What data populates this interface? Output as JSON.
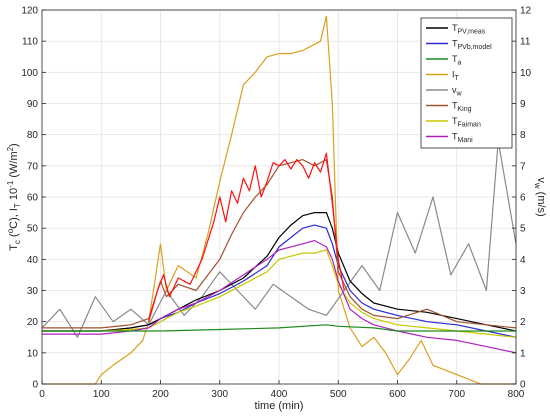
{
  "chart_data": {
    "type": "line",
    "xlabel": "time (min)",
    "ylabel_main": "T",
    "ylabel_sub1": "c",
    "ylabel_mid": " (",
    "ylabel_sup1": "o",
    "ylabel_mid2": "C),  I",
    "ylabel_sub2": "T",
    "ylabel_mid3": " 10",
    "ylabel_sup2": "-1",
    "ylabel_end": " (W/m",
    "ylabel_sup3": "2",
    "ylabel_close": ")",
    "y2label_main": "v",
    "y2label_sub": "w",
    "y2label_end": " (m/s)",
    "xlim": [
      0,
      800
    ],
    "ylim": [
      0,
      120
    ],
    "y2lim": [
      0,
      12
    ],
    "xticks": [
      "0",
      "100",
      "200",
      "300",
      "400",
      "500",
      "600",
      "700",
      "800"
    ],
    "yticks": [
      "0",
      "10",
      "20",
      "30",
      "40",
      "50",
      "60",
      "70",
      "80",
      "90",
      "100",
      "110",
      "120"
    ],
    "y2ticks": [
      "0",
      "1",
      "2",
      "3",
      "4",
      "5",
      "6",
      "7",
      "8",
      "9",
      "10",
      "11",
      "12"
    ],
    "grid": true,
    "legend_position": "top-right",
    "series": [
      {
        "name": "T",
        "sub": "PV,meas",
        "color": "#000000",
        "axis": "left",
        "x": [
          0,
          100,
          150,
          180,
          200,
          230,
          260,
          300,
          340,
          380,
          400,
          420,
          440,
          460,
          480,
          490,
          500,
          520,
          540,
          560,
          600,
          650,
          700,
          750,
          800
        ],
        "y": [
          17,
          17,
          18,
          19,
          21,
          24,
          27,
          30,
          34,
          41,
          47,
          51,
          54,
          55,
          55,
          50,
          42,
          33,
          29,
          26,
          24,
          23,
          21,
          19,
          17
        ]
      },
      {
        "name": "T",
        "sub": "PVb,model",
        "color": "#2a2ad0",
        "axis": "left",
        "x": [
          0,
          100,
          150,
          180,
          200,
          230,
          260,
          300,
          340,
          380,
          400,
          420,
          440,
          460,
          480,
          490,
          500,
          520,
          540,
          560,
          600,
          650,
          700,
          750,
          800
        ],
        "y": [
          17,
          17,
          18,
          19,
          21,
          23,
          26,
          29,
          33,
          38,
          44,
          47,
          50,
          51,
          50,
          45,
          38,
          30,
          26,
          24,
          22,
          20,
          19,
          17,
          15
        ]
      },
      {
        "name": "T",
        "sub": "a",
        "color": "#1e8a1e",
        "axis": "left",
        "x": [
          0,
          100,
          200,
          300,
          400,
          480,
          500,
          560,
          600,
          700,
          800
        ],
        "y": [
          17,
          17,
          17,
          17.5,
          18,
          19,
          18.5,
          18,
          17,
          17,
          17
        ]
      },
      {
        "name": "I",
        "sub": "T",
        "color": "#d9a020",
        "axis": "left",
        "x": [
          0,
          90,
          100,
          120,
          150,
          170,
          180,
          200,
          210,
          230,
          260,
          280,
          300,
          320,
          340,
          360,
          380,
          400,
          420,
          440,
          460,
          470,
          480,
          490,
          500,
          520,
          540,
          560,
          580,
          600,
          620,
          640,
          660,
          700,
          740,
          760,
          800
        ],
        "y": [
          0,
          0,
          3,
          6,
          10,
          14,
          20,
          45,
          30,
          38,
          34,
          48,
          65,
          80,
          96,
          100,
          105,
          106,
          106,
          107,
          109,
          110,
          118,
          90,
          30,
          18,
          12,
          15,
          10,
          3,
          8,
          14,
          6,
          3,
          0,
          0,
          0
        ]
      },
      {
        "name": "v",
        "sub": "w",
        "color": "#8a8a8a",
        "axis": "right",
        "x": [
          0,
          30,
          60,
          90,
          120,
          150,
          180,
          210,
          240,
          270,
          300,
          330,
          360,
          390,
          420,
          450,
          480,
          510,
          540,
          570,
          600,
          630,
          660,
          690,
          720,
          750,
          770,
          800
        ],
        "y": [
          1.8,
          2.4,
          1.5,
          2.8,
          2.0,
          2.4,
          1.9,
          3.0,
          2.2,
          2.8,
          3.6,
          3.0,
          2.4,
          3.2,
          2.8,
          2.4,
          2.2,
          3.0,
          3.8,
          3.0,
          5.5,
          4.2,
          6.0,
          3.5,
          4.5,
          3.0,
          7.8,
          4.5
        ]
      },
      {
        "name": "T",
        "sub": "King",
        "color": "#a0522d",
        "axis": "left",
        "x": [
          0,
          100,
          150,
          180,
          200,
          210,
          230,
          260,
          300,
          320,
          340,
          360,
          380,
          400,
          420,
          440,
          460,
          480,
          490,
          500,
          520,
          540,
          560,
          600,
          650,
          700,
          750,
          800
        ],
        "y": [
          18,
          18,
          19,
          21,
          33,
          28,
          32,
          30,
          40,
          48,
          55,
          60,
          64,
          70,
          71,
          72,
          70,
          72,
          60,
          36,
          28,
          24,
          22,
          21,
          24,
          20,
          19,
          18
        ]
      },
      {
        "name": "T",
        "sub": "Faiman",
        "color": "#c8c800",
        "axis": "left",
        "x": [
          0,
          100,
          150,
          180,
          200,
          230,
          260,
          300,
          340,
          380,
          400,
          420,
          440,
          460,
          480,
          490,
          500,
          520,
          540,
          560,
          600,
          650,
          700,
          750,
          800
        ],
        "y": [
          17,
          17,
          17.5,
          18,
          20,
          23,
          25,
          28,
          32,
          36,
          40,
          41,
          42,
          42,
          43,
          38,
          32,
          26,
          23,
          21,
          19,
          18,
          17,
          16,
          15
        ]
      },
      {
        "name": "T",
        "sub": "Mani",
        "color": "#b020c0",
        "axis": "left",
        "x": [
          0,
          100,
          150,
          180,
          200,
          230,
          260,
          300,
          340,
          380,
          400,
          420,
          440,
          460,
          480,
          490,
          500,
          520,
          540,
          560,
          600,
          650,
          700,
          750,
          800
        ],
        "y": [
          16,
          16,
          17,
          18,
          21,
          24,
          26,
          30,
          35,
          40,
          43,
          44,
          45,
          46,
          44,
          40,
          33,
          24,
          21,
          19,
          17,
          15,
          14,
          12,
          10
        ]
      },
      {
        "name": "",
        "sub": "",
        "color": "#ff1010",
        "axis": "left",
        "x": [
          180,
          195,
          205,
          215,
          230,
          250,
          270,
          290,
          300,
          310,
          320,
          330,
          340,
          350,
          360,
          370,
          380,
          390,
          400,
          410,
          420,
          430,
          440,
          450,
          460,
          470,
          480,
          490,
          500,
          510
        ],
        "y": [
          20,
          30,
          35,
          28,
          34,
          32,
          40,
          52,
          60,
          52,
          62,
          58,
          66,
          62,
          70,
          60,
          65,
          71,
          70,
          72,
          69,
          72,
          70,
          66,
          71,
          68,
          74,
          58,
          40,
          30
        ]
      }
    ]
  }
}
